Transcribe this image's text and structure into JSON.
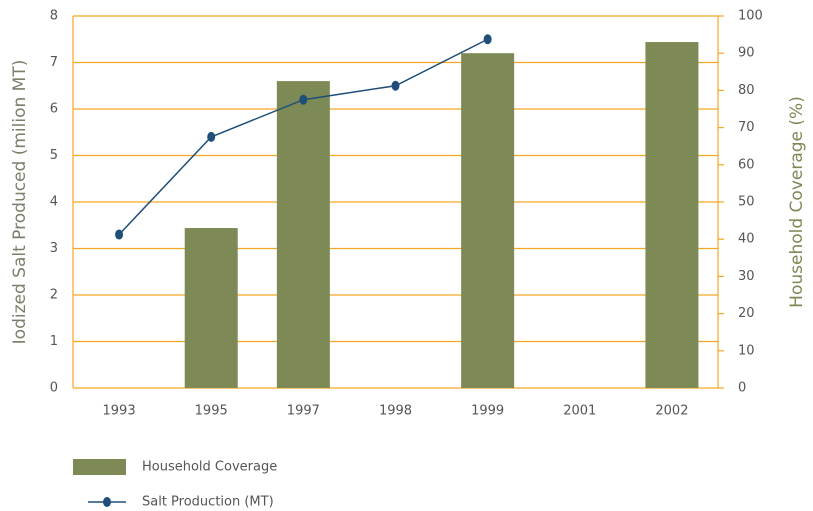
{
  "chart_data": {
    "type": "bar",
    "categories": [
      "1993",
      "1995",
      "1997",
      "1998",
      "1999",
      "2001",
      "2002"
    ],
    "ylabel": "Iodized Salt Produced (milion MT)",
    "y2label": "Household Coverage (%)",
    "ylim": [
      0,
      8
    ],
    "yticks": [
      0,
      1,
      2,
      3,
      4,
      5,
      6,
      7,
      8
    ],
    "y2lim": [
      0,
      100
    ],
    "y2ticks": [
      0,
      10,
      20,
      30,
      40,
      50,
      60,
      70,
      80,
      90,
      100
    ],
    "grid": true,
    "grid_color": "#f5a623",
    "series": [
      {
        "name": "Household Coverage",
        "type": "bar",
        "axis": "y2",
        "color": "#7d8a55",
        "values": [
          null,
          43,
          82.5,
          null,
          90,
          null,
          93
        ]
      },
      {
        "name": "Salt Production (MT)",
        "type": "line",
        "color": "#1f4e79",
        "values": [
          3.3,
          5.4,
          6.2,
          6.5,
          7.5,
          null,
          null
        ]
      }
    ]
  }
}
